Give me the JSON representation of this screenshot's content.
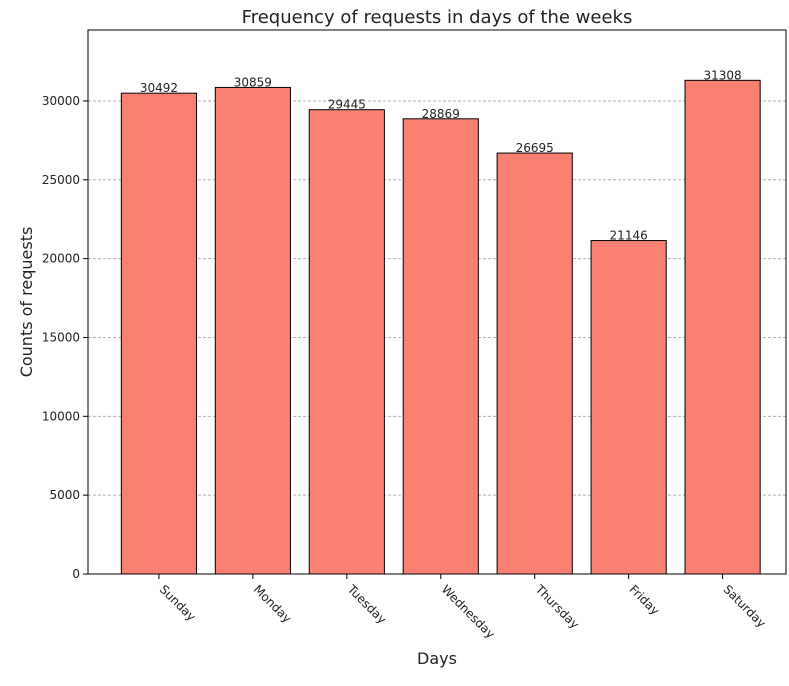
{
  "chart_data": {
    "type": "bar",
    "title": "Frequency of requests in days of the weeks",
    "xlabel": "Days",
    "ylabel": "Counts of requests",
    "categories": [
      "Sunday",
      "Monday",
      "Tuesday",
      "Wednesday",
      "Thursday",
      "Friday",
      "Saturday"
    ],
    "values": [
      30492,
      30859,
      29445,
      28869,
      26695,
      21146,
      31308
    ],
    "ylim": [
      0,
      34500
    ],
    "yticks": [
      "0",
      "5000",
      "10000",
      "15000",
      "20000",
      "25000",
      "30000"
    ],
    "grid": "y",
    "bar_color": "#fa8072",
    "bar_edge_color": "#000000",
    "grid_color": "#b0b0b0"
  }
}
